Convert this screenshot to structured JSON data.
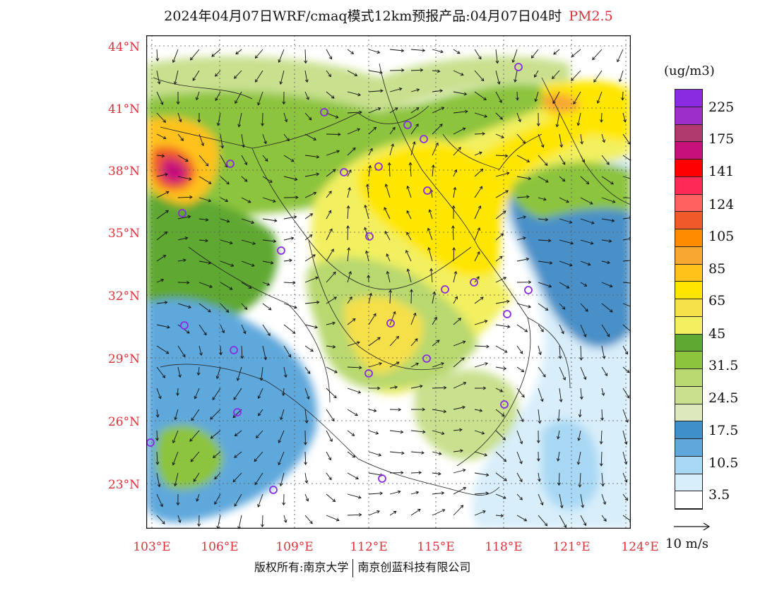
{
  "title": {
    "main": "2024年04月07日WRF/cmaq模式12km预报产品:04月07日04时",
    "pollutant": "PM2.5"
  },
  "axes": {
    "lat_labels": [
      "44°N",
      "41°N",
      "38°N",
      "35°N",
      "32°N",
      "29°N",
      "26°N",
      "23°N"
    ],
    "lon_labels": [
      "103°E",
      "106°E",
      "109°E",
      "112°E",
      "115°E",
      "118°E",
      "121°E",
      "124°E"
    ]
  },
  "legend": {
    "unit": "(ug/m3)",
    "labels": [
      "225",
      "175",
      "141",
      "124",
      "105",
      "85",
      "65",
      "45",
      "31.5",
      "24.5",
      "17.5",
      "10.5",
      "3.5"
    ],
    "colors": [
      "#8a2be2",
      "#9b2fc8",
      "#b03a6e",
      "#c8107a",
      "#ff0000",
      "#ff2a55",
      "#ff6060",
      "#f05a28",
      "#ff8c00",
      "#f7a830",
      "#ffc21a",
      "#ffe600",
      "#f6e04a",
      "#f2f060",
      "#5fa832",
      "#8cc43c",
      "#b8d870",
      "#c9e08e",
      "#dde9bd",
      "#3f8fc8",
      "#5fa8dc",
      "#a8d8f4",
      "#d8eefa",
      "#ffffff"
    ]
  },
  "wind_reference": {
    "label": "10 m/s"
  },
  "footer": {
    "left": "版权所有:南京大学",
    "right": "南京创蓝科技有限公司"
  },
  "colors": {
    "label_red": "#e0303a",
    "sea_blue": "#4a90c8",
    "haze_yellow": "#ffe600",
    "hotspot": "#c8107a"
  }
}
